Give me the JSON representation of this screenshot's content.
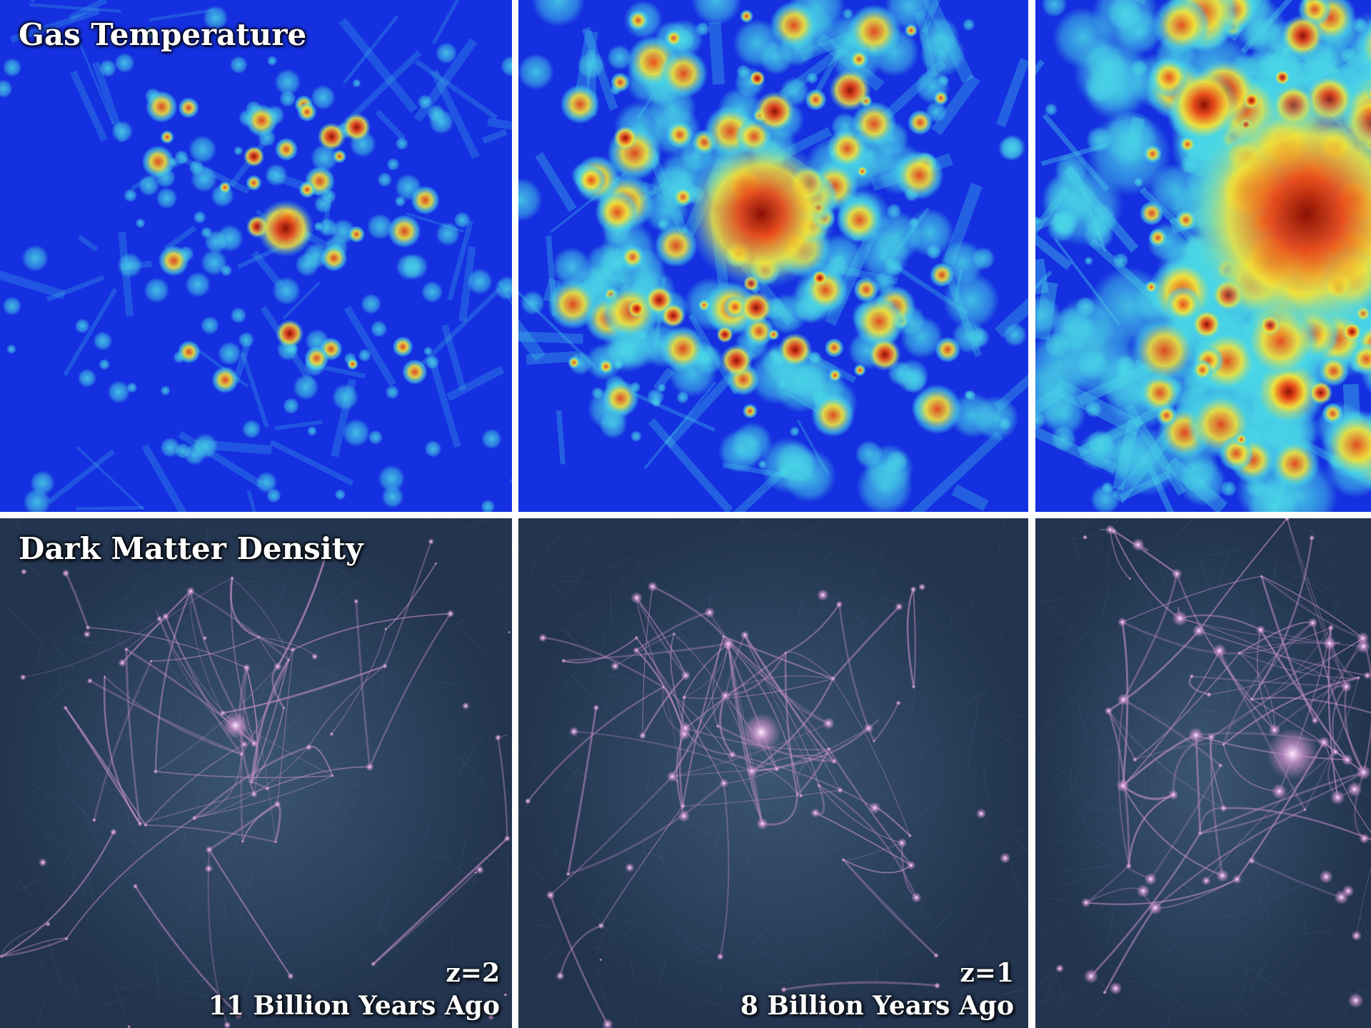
{
  "rows": {
    "top_label": "Gas Temperature",
    "bottom_label": "Dark Matter Density"
  },
  "columns": [
    {
      "redshift": "z=2",
      "time_ago": "11 Billion Years Ago"
    },
    {
      "redshift": "z=1",
      "time_ago": "8 Billion Years Ago"
    },
    {
      "redshift": "",
      "time_ago": ""
    }
  ],
  "colors": {
    "gas_background": "#1530e0",
    "gas_cool": "#49d6e6",
    "gas_warm": "#f0e23a",
    "gas_hot": "#e8481a",
    "gas_hottest": "#8a1005",
    "dm_background": "#22344e",
    "dm_filament": "#c58fc8",
    "dm_node": "#ffe7ff",
    "divider": "#ffffff"
  },
  "icons": {
    "gas_panel": "gas-temperature-map-icon",
    "dm_panel": "dark-matter-density-map-icon"
  }
}
